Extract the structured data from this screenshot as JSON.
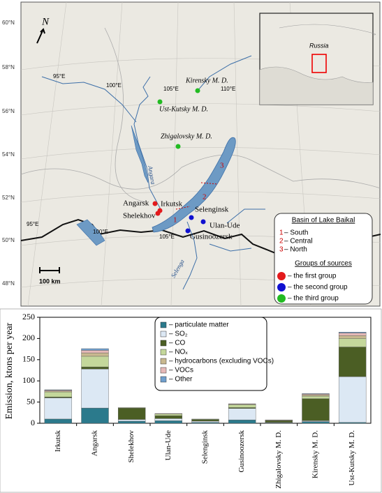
{
  "map": {
    "north": "N",
    "lat_labels": [
      "60°N",
      "58°N",
      "56°N",
      "54°N",
      "52°N",
      "50°N",
      "48°N"
    ],
    "lon_labels": [
      "95°E",
      "100°E",
      "105°E",
      "110°E",
      "95°E",
      "100°E",
      "105°E"
    ],
    "places": [
      {
        "label": "Angarsk",
        "group": 1
      },
      {
        "label": "Irkutsk",
        "group": 1
      },
      {
        "label": "Shelekhov",
        "group": 1
      },
      {
        "label": "Selenginsk",
        "group": 2
      },
      {
        "label": "Ulan-Ude",
        "group": 2
      },
      {
        "label": "Gusinoozersk",
        "group": 2
      },
      {
        "label": "Kirensky M. D.",
        "group": 3
      },
      {
        "label": "Ust-Kutsky M. D.",
        "group": 3
      },
      {
        "label": "Zhigalovsky M. D.",
        "group": 3
      }
    ],
    "rivers": [
      "Angara",
      "Selenga"
    ],
    "basin_numbers": [
      "1",
      "2",
      "3"
    ],
    "scale": "100 km",
    "inset_label": "Russia",
    "legend": {
      "title": "Basin of Lake Baikal",
      "basins": [
        {
          "num": "1",
          "text": "– South"
        },
        {
          "num": "2",
          "text": "– Central"
        },
        {
          "num": "3",
          "text": "– North"
        }
      ],
      "groups_title": "Groups of sources",
      "groups": [
        {
          "color": "#e31a1c",
          "text": "– the first group"
        },
        {
          "color": "#1010d0",
          "text": "– the second group"
        },
        {
          "color": "#22bb22",
          "text": "– the third group"
        }
      ]
    }
  },
  "chart_data": {
    "type": "stacked_bar",
    "ylabel": "Emission, ktons per year",
    "categories": [
      "Irkutsk",
      "Angarsk",
      "Shelekhov",
      "Ulan-Ude",
      "Selenginsk",
      "Gusinoozersk",
      "Zhigalovsky M. D.",
      "Kirensky M. D.",
      "Ust-Kutsky M. D."
    ],
    "series": [
      {
        "name": "– particulate matter",
        "color": "#2b7a8c",
        "values": [
          10,
          36,
          5,
          6,
          2,
          8,
          1,
          4,
          2
        ]
      },
      {
        "name": "– SO₂",
        "color": "#dce8f4",
        "values": [
          50,
          92,
          4,
          5,
          3,
          27,
          1,
          2,
          108
        ]
      },
      {
        "name": "– CO",
        "color": "#4b5e24",
        "values": [
          2,
          5,
          27,
          7,
          4,
          2,
          4,
          52,
          70
        ]
      },
      {
        "name": "– NOₓ",
        "color": "#c4d79b",
        "values": [
          12,
          25,
          1,
          4,
          1,
          7,
          1,
          6,
          20
        ]
      },
      {
        "name": "– hydrocarbons (excluding VOCs)",
        "color": "#c8b88f",
        "values": [
          2,
          8,
          0,
          1,
          0,
          1,
          1,
          3,
          7
        ]
      },
      {
        "name": "– VOCs",
        "color": "#e6b9b8",
        "values": [
          2,
          6,
          0,
          0,
          0,
          1,
          0,
          2,
          6
        ]
      },
      {
        "name": "– Other",
        "color": "#6f9fcd",
        "values": [
          1,
          4,
          0,
          0,
          0,
          0,
          0,
          1,
          2
        ]
      }
    ],
    "ylim": [
      0,
      250
    ],
    "yticks": [
      0,
      50,
      100,
      150,
      200,
      250
    ],
    "legend": "top-center"
  }
}
